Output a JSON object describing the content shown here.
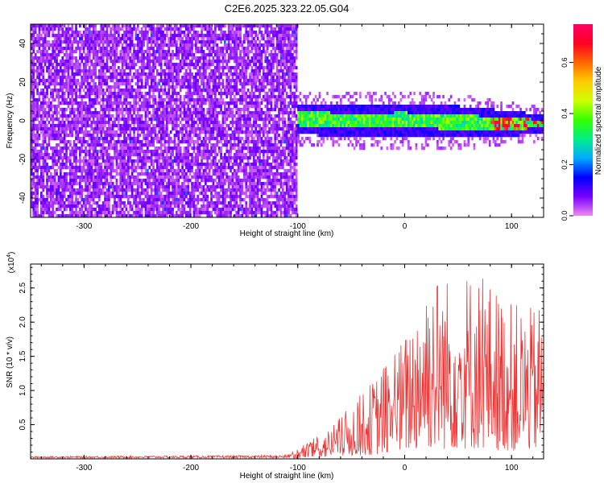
{
  "title": "C2E6.2025.323.22.05.G04",
  "colors": {
    "snr_line": "#ee3333",
    "spec_background": "#ffffff",
    "axis": "#000000"
  },
  "chart_data": [
    {
      "type": "heatmap",
      "name": "spectrogram",
      "xlabel": "Height of straight line (km)",
      "ylabel": "Frequency (Hz)",
      "xlim": [
        -350,
        130
      ],
      "ylim": [
        -50,
        50
      ],
      "x_ticks": [
        -300,
        -200,
        -100,
        0,
        100
      ],
      "x_tick_labels": [
        "-300",
        "-200",
        "-100",
        "0",
        "100"
      ],
      "y_ticks": [
        -40,
        -20,
        0,
        20,
        40
      ],
      "y_tick_labels": [
        "-40",
        "-20",
        "0",
        "20",
        "40"
      ],
      "noise_region_x": [
        -350,
        -102
      ],
      "signal_band": {
        "x_range": [
          -102,
          130
        ],
        "center_hz": [
          [
            -102,
            2
          ],
          [
            -60,
            1
          ],
          [
            0,
            1
          ],
          [
            60,
            0
          ],
          [
            130,
            -1
          ]
        ],
        "halfwidth_hz": [
          [
            -102,
            8
          ],
          [
            0,
            9
          ],
          [
            60,
            8
          ],
          [
            130,
            5
          ]
        ]
      },
      "colorbar": {
        "label": "Normalized spectral amplitude",
        "range": [
          0,
          0.75
        ],
        "ticks": [
          0.0,
          0.2,
          0.4,
          0.6
        ],
        "tick_labels": [
          "0.0",
          "0.2",
          "0.4",
          "0.6"
        ],
        "stops": [
          "#ee88ee",
          "#7700ff",
          "#0000ff",
          "#00aaff",
          "#00ee88",
          "#33ff00",
          "#ccff00",
          "#ffcc00",
          "#ff6600",
          "#ff0022",
          "#ff0066"
        ]
      }
    },
    {
      "type": "line",
      "name": "snr",
      "xlabel": "Height of straight line (km)",
      "ylabel": "SNR (10 * v/v)",
      "y_multiplier": "(x10",
      "y_multiplier_exp": "4",
      "y_multiplier_close": ")",
      "xlim": [
        -350,
        130
      ],
      "ylim": [
        0,
        2.85
      ],
      "x_ticks": [
        -300,
        -200,
        -100,
        0,
        100
      ],
      "x_tick_labels": [
        "-300",
        "-200",
        "-100",
        "0",
        "100"
      ],
      "y_ticks": [
        0.5,
        1.0,
        1.5,
        2.0,
        2.5
      ],
      "y_tick_labels": [
        "0.5",
        "1.0",
        "1.5",
        "2.0",
        "2.5"
      ],
      "envelope": {
        "x": [
          -350,
          -200,
          -110,
          -100,
          -70,
          -50,
          -30,
          -10,
          0,
          20,
          40,
          60,
          80,
          100,
          120,
          130
        ],
        "y": [
          0.03,
          0.04,
          0.05,
          0.15,
          0.45,
          0.8,
          1.15,
          1.6,
          1.8,
          2.85,
          2.7,
          2.8,
          2.6,
          2.3,
          2.2,
          2.35
        ]
      }
    }
  ]
}
